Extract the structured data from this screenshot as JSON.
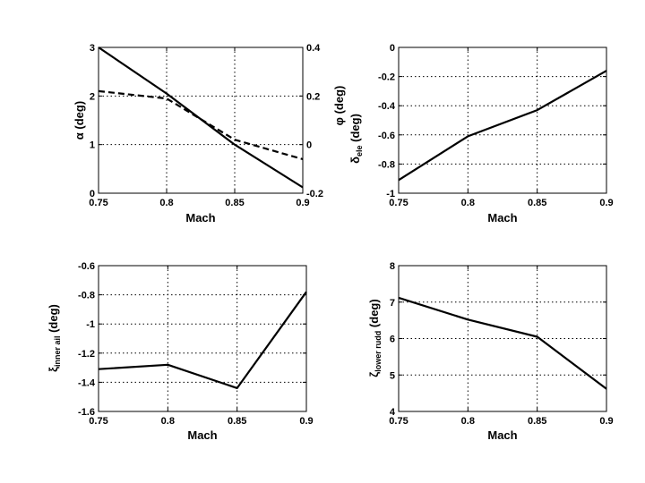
{
  "chart_data": [
    {
      "type": "line",
      "xlabel": "Mach",
      "ylabel": "α (deg)",
      "ylabel_right": "φ (deg)",
      "xlim": [
        0.75,
        0.9
      ],
      "ylim": [
        0,
        3
      ],
      "ylim_right": [
        -0.2,
        0.4
      ],
      "xticks": [
        "0.75",
        "0.8",
        "0.85",
        "0.9"
      ],
      "yticks": [
        "0",
        "1",
        "2",
        "3"
      ],
      "yticks_right": [
        "-0.2",
        "0",
        "0.2",
        "0.4"
      ],
      "grid": true,
      "series": [
        {
          "style": "solid",
          "axis": "left",
          "x": [
            0.75,
            0.8,
            0.85,
            0.9
          ],
          "y": [
            3.0,
            2.05,
            1.0,
            0.12
          ]
        },
        {
          "style": "dashed",
          "axis": "right",
          "x": [
            0.75,
            0.8,
            0.85,
            0.9
          ],
          "y": [
            0.22,
            0.19,
            0.02,
            -0.06
          ]
        }
      ]
    },
    {
      "type": "line",
      "xlabel": "Mach",
      "ylabel": "δele (deg)",
      "xlim": [
        0.75,
        0.9
      ],
      "ylim": [
        -1,
        0
      ],
      "xticks": [
        "0.75",
        "0.8",
        "0.85",
        "0.9"
      ],
      "yticks": [
        "-1",
        "-0.8",
        "-0.6",
        "-0.4",
        "-0.2",
        "0"
      ],
      "grid": true,
      "series": [
        {
          "style": "solid",
          "x": [
            0.75,
            0.8,
            0.85,
            0.9
          ],
          "y": [
            -0.91,
            -0.61,
            -0.43,
            -0.16
          ]
        }
      ]
    },
    {
      "type": "line",
      "xlabel": "Mach",
      "ylabel": "ξinner ail (deg)",
      "xlim": [
        0.75,
        0.9
      ],
      "ylim": [
        -1.6,
        -0.6
      ],
      "xticks": [
        "0.75",
        "0.8",
        "0.85",
        "0.9"
      ],
      "yticks": [
        "-1.6",
        "-1.4",
        "-1.2",
        "-1",
        "-0.8",
        "-0.6"
      ],
      "grid": true,
      "series": [
        {
          "style": "solid",
          "x": [
            0.75,
            0.8,
            0.85,
            0.9
          ],
          "y": [
            -1.31,
            -1.28,
            -1.44,
            -0.78
          ]
        }
      ]
    },
    {
      "type": "line",
      "xlabel": "Mach",
      "ylabel": "ζlower rudd (deg)",
      "xlim": [
        0.75,
        0.9
      ],
      "ylim": [
        4,
        8
      ],
      "xticks": [
        "0.75",
        "0.8",
        "0.85",
        "0.9"
      ],
      "yticks": [
        "4",
        "5",
        "6",
        "7",
        "8"
      ],
      "grid": true,
      "series": [
        {
          "style": "solid",
          "x": [
            0.75,
            0.8,
            0.85,
            0.9
          ],
          "y": [
            7.12,
            6.52,
            6.05,
            4.62
          ]
        }
      ]
    }
  ]
}
